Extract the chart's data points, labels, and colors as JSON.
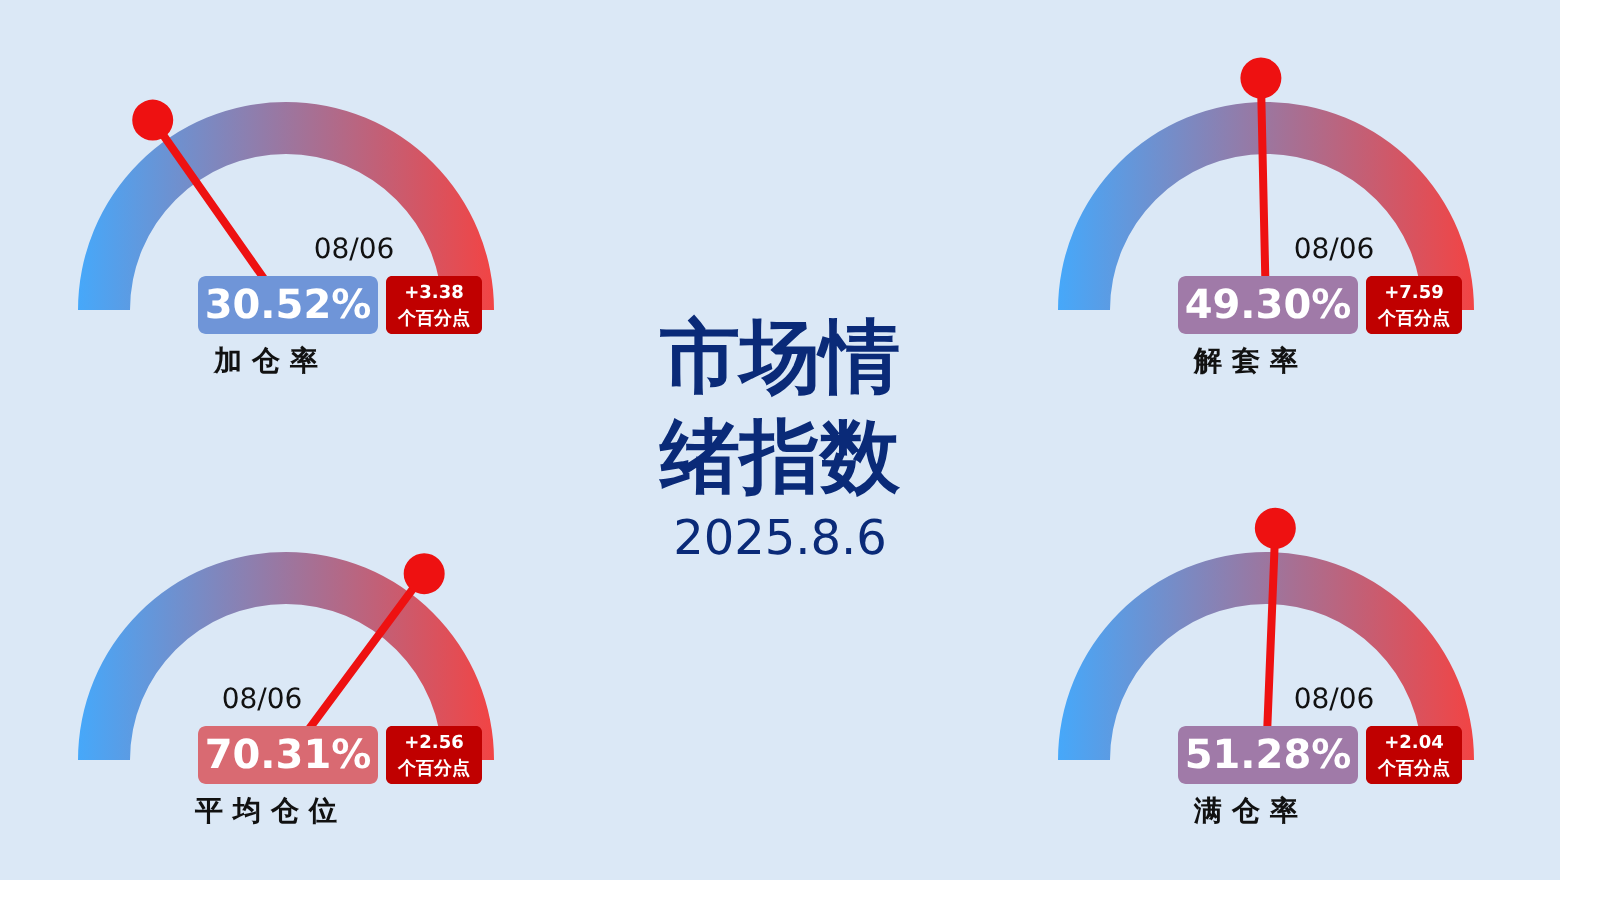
{
  "chart_data": [
    {
      "type": "other",
      "title": "市场情绪指数",
      "subtitle": "2025.8.6"
    },
    {
      "type": "other",
      "title": "加仓率",
      "values": [
        30.52
      ],
      "value_labels": [
        "30.52%"
      ],
      "colors": [
        "#6f95d8"
      ],
      "annotations": [
        "08/06",
        "+3.38",
        "个百分点"
      ]
    },
    {
      "type": "other",
      "title": "解套率",
      "values": [
        49.3
      ],
      "value_labels": [
        "49.30%"
      ],
      "colors": [
        "#a07aa8"
      ],
      "annotations": [
        "08/06",
        "+7.59",
        "个百分点"
      ]
    },
    {
      "type": "other",
      "title": "平均仓位",
      "values": [
        70.31
      ],
      "value_labels": [
        "70.31%"
      ],
      "colors": [
        "#d96a72"
      ],
      "annotations": [
        "08/06",
        "+2.56",
        "个百分点"
      ]
    },
    {
      "type": "other",
      "title": "满仓率",
      "values": [
        51.28
      ],
      "value_labels": [
        "51.28%"
      ],
      "colors": [
        "#a07aa8"
      ],
      "annotations": [
        "08/06",
        "+2.04",
        "个百分点"
      ]
    }
  ]
}
